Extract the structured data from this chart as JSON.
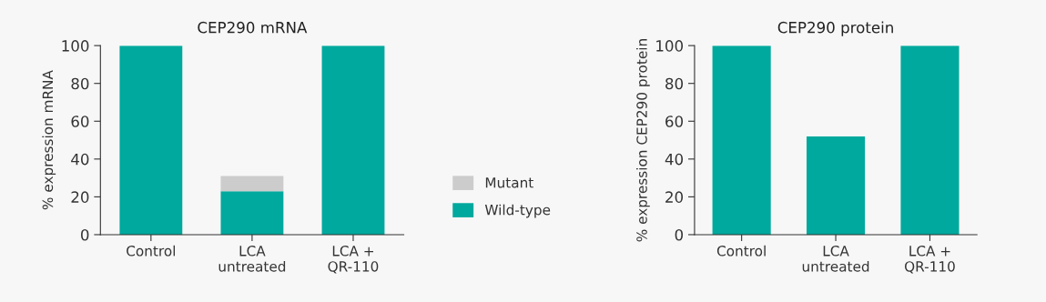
{
  "chart_data": [
    {
      "type": "bar",
      "title": "CEP290 mRNA",
      "ylabel": "% expression mRNA",
      "categories": [
        "Control",
        "LCA\nuntreated",
        "LCA +\nQR-110"
      ],
      "stacked": true,
      "ylim": [
        0,
        100
      ],
      "yticks": [
        0,
        20,
        40,
        60,
        80,
        100
      ],
      "legend": "right",
      "grid": false,
      "series": [
        {
          "name": "Wild-type",
          "color": "#00a99d",
          "values": [
            100,
            23,
            100
          ]
        },
        {
          "name": "Mutant",
          "color": "#cccccc",
          "values": [
            null,
            8,
            null
          ]
        }
      ]
    },
    {
      "type": "bar",
      "title": "CEP290 protein",
      "ylabel": "% expression CEP290 protein",
      "categories": [
        "Control",
        "LCA\nuntreated",
        "LCA +\nQR-110"
      ],
      "ylim": [
        0,
        100
      ],
      "yticks": [
        0,
        20,
        40,
        60,
        80,
        100
      ],
      "grid": false,
      "series": [
        {
          "color": "#00a99d",
          "values": [
            100,
            52,
            100
          ]
        }
      ]
    }
  ]
}
